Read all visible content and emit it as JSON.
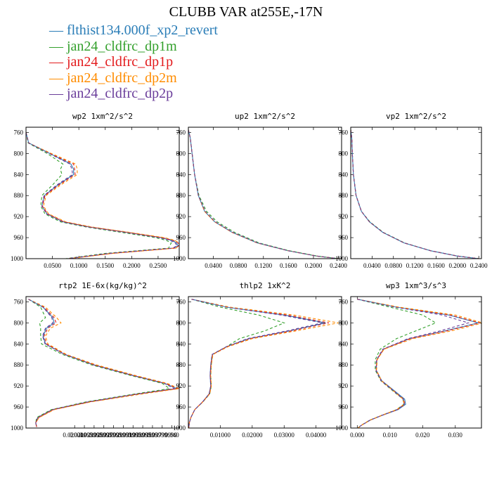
{
  "title": "CLUBB VAR at255E,-17N",
  "legend": [
    {
      "label": "flthist134.000f_xp2_revert",
      "color": "#2a7db7"
    },
    {
      "label": "jan24_cldfrc_dp1m",
      "color": "#33a02c"
    },
    {
      "label": "jan24_cldfrc_dp1p",
      "color": "#e31a1c"
    },
    {
      "label": "jan24_cldfrc_dp2m",
      "color": "#ff8c00"
    },
    {
      "label": "jan24_cldfrc_dp2p",
      "color": "#6a3d9a"
    }
  ],
  "chart_data": [
    {
      "type": "line",
      "title": "wp2   1xm^2/s^2",
      "ylim": [
        1000,
        750
      ],
      "xlim": [
        0,
        0.29
      ],
      "yticks": [
        760,
        800,
        840,
        880,
        920,
        960,
        1000
      ],
      "xticks": [
        0.05,
        0.1,
        0.15,
        0.2,
        0.25
      ],
      "xtick_labels": [
        "0.0500",
        "0.1000",
        "0.1500",
        "0.2000",
        "0.2500"
      ],
      "y": [
        760,
        780,
        800,
        820,
        830,
        840,
        860,
        880,
        900,
        915,
        930,
        940,
        950,
        960,
        965,
        970,
        975,
        980,
        990,
        1000
      ],
      "series": [
        {
          "values": [
            0.0,
            0.005,
            0.045,
            0.085,
            0.09,
            0.09,
            0.06,
            0.035,
            0.03,
            0.04,
            0.07,
            0.12,
            0.19,
            0.255,
            0.275,
            0.285,
            0.288,
            0.28,
            0.16,
            0.08
          ]
        },
        {
          "values": [
            0.0,
            0.004,
            0.04,
            0.07,
            0.065,
            0.068,
            0.05,
            0.03,
            0.028,
            0.036,
            0.065,
            0.115,
            0.18,
            0.245,
            0.265,
            0.275,
            0.272,
            0.27,
            0.15,
            0.075
          ]
        },
        {
          "values": [
            0.0,
            0.005,
            0.046,
            0.09,
            0.092,
            0.093,
            0.062,
            0.036,
            0.031,
            0.041,
            0.072,
            0.122,
            0.192,
            0.258,
            0.278,
            0.288,
            0.29,
            0.282,
            0.162,
            0.08
          ]
        },
        {
          "values": [
            0.0,
            0.005,
            0.048,
            0.094,
            0.097,
            0.097,
            0.065,
            0.038,
            0.033,
            0.043,
            0.075,
            0.126,
            0.196,
            0.262,
            0.281,
            0.29,
            0.29,
            0.284,
            0.165,
            0.082
          ]
        },
        {
          "values": [
            0.0,
            0.005,
            0.044,
            0.083,
            0.087,
            0.088,
            0.058,
            0.034,
            0.03,
            0.039,
            0.069,
            0.119,
            0.188,
            0.252,
            0.272,
            0.282,
            0.286,
            0.278,
            0.158,
            0.079
          ]
        }
      ]
    },
    {
      "type": "line",
      "title": "up2   1xm^2/s^2",
      "ylim": [
        1000,
        750
      ],
      "xlim": [
        0,
        0.245
      ],
      "yticks": [
        760,
        800,
        840,
        880,
        920,
        960,
        1000
      ],
      "xticks": [
        0.04,
        0.08,
        0.12,
        0.16,
        0.2,
        0.24
      ],
      "xtick_labels": [
        "0.0400",
        "0.0800",
        "0.1200",
        "0.1600",
        "0.2000",
        "0.2400"
      ],
      "y": [
        755,
        770,
        800,
        840,
        880,
        910,
        930,
        950,
        970,
        985,
        995,
        1000
      ],
      "series": [
        {
          "values": [
            0.0,
            0.003,
            0.006,
            0.01,
            0.016,
            0.026,
            0.042,
            0.07,
            0.11,
            0.16,
            0.205,
            0.24
          ]
        },
        {
          "values": [
            0.0,
            0.003,
            0.006,
            0.01,
            0.017,
            0.029,
            0.046,
            0.074,
            0.113,
            0.162,
            0.206,
            0.24
          ]
        },
        {
          "values": [
            0.0,
            0.003,
            0.006,
            0.01,
            0.016,
            0.026,
            0.042,
            0.07,
            0.11,
            0.16,
            0.205,
            0.24
          ]
        },
        {
          "values": [
            0.0,
            0.003,
            0.006,
            0.01,
            0.016,
            0.026,
            0.042,
            0.07,
            0.11,
            0.16,
            0.205,
            0.24
          ]
        },
        {
          "values": [
            0.0,
            0.003,
            0.006,
            0.01,
            0.016,
            0.027,
            0.043,
            0.071,
            0.111,
            0.16,
            0.205,
            0.24
          ]
        }
      ]
    },
    {
      "type": "line",
      "title": "vp2   1xm^2/s^2",
      "ylim": [
        1000,
        750
      ],
      "xlim": [
        0,
        0.245
      ],
      "yticks": [
        760,
        800,
        840,
        880,
        920,
        960,
        1000
      ],
      "xticks": [
        0.04,
        0.08,
        0.12,
        0.16,
        0.2,
        0.24
      ],
      "xtick_labels": [
        "0.0400",
        "0.0800",
        "0.1200",
        "0.1600",
        "0.2000",
        "0.2400"
      ],
      "y": [
        755,
        770,
        800,
        840,
        880,
        910,
        930,
        950,
        970,
        985,
        995,
        1000
      ],
      "series": [
        {
          "values": [
            0.0,
            0.002,
            0.003,
            0.005,
            0.01,
            0.02,
            0.035,
            0.06,
            0.1,
            0.15,
            0.2,
            0.24
          ]
        },
        {
          "values": [
            0.0,
            0.002,
            0.003,
            0.005,
            0.01,
            0.02,
            0.036,
            0.061,
            0.101,
            0.15,
            0.2,
            0.24
          ]
        },
        {
          "values": [
            0.0,
            0.002,
            0.003,
            0.005,
            0.01,
            0.02,
            0.035,
            0.06,
            0.1,
            0.15,
            0.2,
            0.24
          ]
        },
        {
          "values": [
            0.0,
            0.002,
            0.003,
            0.005,
            0.01,
            0.02,
            0.035,
            0.06,
            0.1,
            0.15,
            0.2,
            0.24
          ]
        },
        {
          "values": [
            0.0,
            0.002,
            0.003,
            0.005,
            0.01,
            0.02,
            0.035,
            0.06,
            0.1,
            0.15,
            0.2,
            0.24
          ]
        }
      ]
    },
    {
      "type": "line",
      "title": "rtp2   1E-6x(kg/kg)^2",
      "ylim": [
        1000,
        750
      ],
      "xlim": [
        0.01,
        0.0415
      ],
      "yticks": [
        760,
        800,
        840,
        880,
        920,
        960,
        1000
      ],
      "xticks": [
        0.02,
        0.022,
        0.024,
        0.026,
        0.028,
        0.03,
        0.032,
        0.034,
        0.036,
        0.038,
        0.04
      ],
      "xtick_labels": [
        "0.020000",
        "0.02199999",
        "0.02399999",
        "0.02599999",
        "0.02799999",
        "0.02999999",
        "0.03199999",
        "0.03399999",
        "0.03599999",
        "0.03799999",
        "0.040"
      ],
      "y": [
        755,
        770,
        790,
        800,
        810,
        825,
        840,
        860,
        880,
        900,
        915,
        925,
        935,
        950,
        965,
        980,
        990,
        998
      ],
      "series": [
        {
          "values": [
            0.0105,
            0.0135,
            0.0155,
            0.0158,
            0.0142,
            0.0135,
            0.014,
            0.018,
            0.024,
            0.032,
            0.0385,
            0.041,
            0.033,
            0.023,
            0.0155,
            0.0125,
            0.012,
            0.0122
          ]
        },
        {
          "values": [
            0.0105,
            0.013,
            0.014,
            0.0128,
            0.013,
            0.013,
            0.0132,
            0.0175,
            0.0235,
            0.0315,
            0.038,
            0.0395,
            0.0325,
            0.0225,
            0.0152,
            0.0122,
            0.012,
            0.0122
          ]
        },
        {
          "values": [
            0.0105,
            0.0137,
            0.0158,
            0.0162,
            0.0145,
            0.0137,
            0.0142,
            0.0181,
            0.0241,
            0.0321,
            0.0387,
            0.0412,
            0.0332,
            0.0232,
            0.0156,
            0.0126,
            0.012,
            0.0122
          ]
        },
        {
          "values": [
            0.0105,
            0.014,
            0.0163,
            0.0172,
            0.015,
            0.014,
            0.0145,
            0.0183,
            0.0245,
            0.0325,
            0.039,
            0.0415,
            0.034,
            0.0235,
            0.0158,
            0.0127,
            0.012,
            0.0122
          ]
        },
        {
          "values": [
            0.0105,
            0.0135,
            0.0153,
            0.0155,
            0.014,
            0.0134,
            0.0139,
            0.0179,
            0.0239,
            0.0319,
            0.0384,
            0.0405,
            0.0331,
            0.0229,
            0.0154,
            0.0124,
            0.012,
            0.0122
          ]
        }
      ]
    },
    {
      "type": "line",
      "title": "thlp2   1xK^2",
      "ylim": [
        1000,
        750
      ],
      "xlim": [
        0,
        0.048
      ],
      "yticks": [
        760,
        800,
        840,
        880,
        920,
        960,
        1000
      ],
      "xticks": [
        0.01,
        0.02,
        0.03,
        0.04
      ],
      "xtick_labels": [
        "0.01000",
        "0.02000",
        "0.03000",
        "0.04000"
      ],
      "y": [
        755,
        770,
        785,
        800,
        815,
        830,
        845,
        860,
        880,
        900,
        920,
        935,
        950,
        965,
        980,
        990,
        1000
      ],
      "series": [
        {
          "values": [
            0.001,
            0.012,
            0.03,
            0.043,
            0.032,
            0.019,
            0.012,
            0.0075,
            0.007,
            0.0068,
            0.007,
            0.0065,
            0.0045,
            0.002,
            0.0008,
            0.0003,
            0.0001
          ]
        },
        {
          "values": [
            0.001,
            0.01,
            0.022,
            0.03,
            0.024,
            0.016,
            0.012,
            0.0075,
            0.0072,
            0.007,
            0.0072,
            0.0067,
            0.0046,
            0.002,
            0.0008,
            0.0003,
            0.0001
          ]
        },
        {
          "values": [
            0.001,
            0.0125,
            0.031,
            0.044,
            0.0325,
            0.0195,
            0.0122,
            0.0076,
            0.0071,
            0.0069,
            0.0071,
            0.0066,
            0.0045,
            0.002,
            0.0008,
            0.0003,
            0.0001
          ]
        },
        {
          "values": [
            0.001,
            0.013,
            0.033,
            0.047,
            0.034,
            0.02,
            0.0125,
            0.0077,
            0.0072,
            0.007,
            0.0072,
            0.0067,
            0.0046,
            0.002,
            0.0008,
            0.0003,
            0.0001
          ]
        },
        {
          "values": [
            0.001,
            0.0118,
            0.029,
            0.042,
            0.031,
            0.0185,
            0.012,
            0.0074,
            0.007,
            0.0068,
            0.007,
            0.0065,
            0.0045,
            0.002,
            0.0008,
            0.0003,
            0.0001
          ]
        }
      ]
    },
    {
      "type": "line",
      "title": "wp3   1xm^3/s^3",
      "ylim": [
        1000,
        750
      ],
      "xlim": [
        -0.002,
        0.038
      ],
      "yticks": [
        760,
        800,
        840,
        880,
        920,
        960,
        1000
      ],
      "xticks": [
        0.0,
        0.01,
        0.02,
        0.03
      ],
      "xtick_labels": [
        "0.000",
        "0.010",
        "0.020",
        "0.030"
      ],
      "y": [
        755,
        770,
        785,
        800,
        815,
        830,
        850,
        870,
        890,
        910,
        930,
        945,
        955,
        965,
        975,
        985,
        995,
        1000
      ],
      "series": [
        {
          "values": [
            0.0,
            0.012,
            0.028,
            0.037,
            0.027,
            0.016,
            0.008,
            0.006,
            0.0058,
            0.0075,
            0.0115,
            0.0145,
            0.0148,
            0.0125,
            0.008,
            0.004,
            0.0012,
            0.0002
          ]
        },
        {
          "values": [
            0.0,
            0.01,
            0.02,
            0.024,
            0.018,
            0.012,
            0.007,
            0.0055,
            0.0055,
            0.0072,
            0.011,
            0.014,
            0.0142,
            0.012,
            0.0078,
            0.0038,
            0.0011,
            0.0002
          ]
        },
        {
          "values": [
            0.0,
            0.0123,
            0.0285,
            0.0375,
            0.0275,
            0.0162,
            0.0081,
            0.006,
            0.0058,
            0.0074,
            0.0113,
            0.0142,
            0.0145,
            0.0123,
            0.0079,
            0.0039,
            0.0012,
            0.0002
          ]
        },
        {
          "values": [
            0.0,
            0.0128,
            0.03,
            0.0385,
            0.029,
            0.017,
            0.0082,
            0.0061,
            0.0059,
            0.0074,
            0.0112,
            0.014,
            0.0143,
            0.0121,
            0.0078,
            0.0039,
            0.0012,
            0.0002
          ]
        },
        {
          "values": [
            0.0,
            0.0115,
            0.026,
            0.034,
            0.0255,
            0.0155,
            0.0078,
            0.0059,
            0.0057,
            0.0073,
            0.0112,
            0.0141,
            0.0144,
            0.0122,
            0.0079,
            0.0039,
            0.0012,
            0.0002
          ]
        }
      ]
    }
  ]
}
